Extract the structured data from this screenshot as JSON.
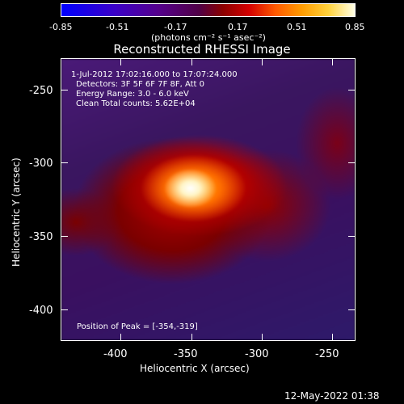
{
  "colorbar": {
    "ticks": [
      "-0.85",
      "-0.51",
      "-0.17",
      "0.17",
      "0.51",
      "0.85"
    ],
    "units": "(photons cm⁻² s⁻¹ asec⁻²)"
  },
  "title": "Reconstructed RHESSI Image",
  "info": {
    "line1": "1-Jul-2012 17:02:16.000 to 17:07:24.000",
    "line2": "Detectors: 3F 5F 6F 7F 8F, Att 0",
    "line3": "Energy Range: 3.0 - 6.0 keV",
    "line4": "Clean     Total counts: 5.62E+04"
  },
  "peak_label": "Position of Peak = [-354,-319]",
  "axes": {
    "xlabel": "Heliocentric X (arcsec)",
    "ylabel": "Heliocentric Y (arcsec)",
    "xticks": [
      "-400",
      "-350",
      "-300",
      "-250"
    ],
    "yticks": [
      "-250",
      "-300",
      "-350",
      "-400"
    ]
  },
  "footer_timestamp": "12-May-2022 01:38",
  "colors": {
    "background": "#000000",
    "text": "#ffffff"
  }
}
